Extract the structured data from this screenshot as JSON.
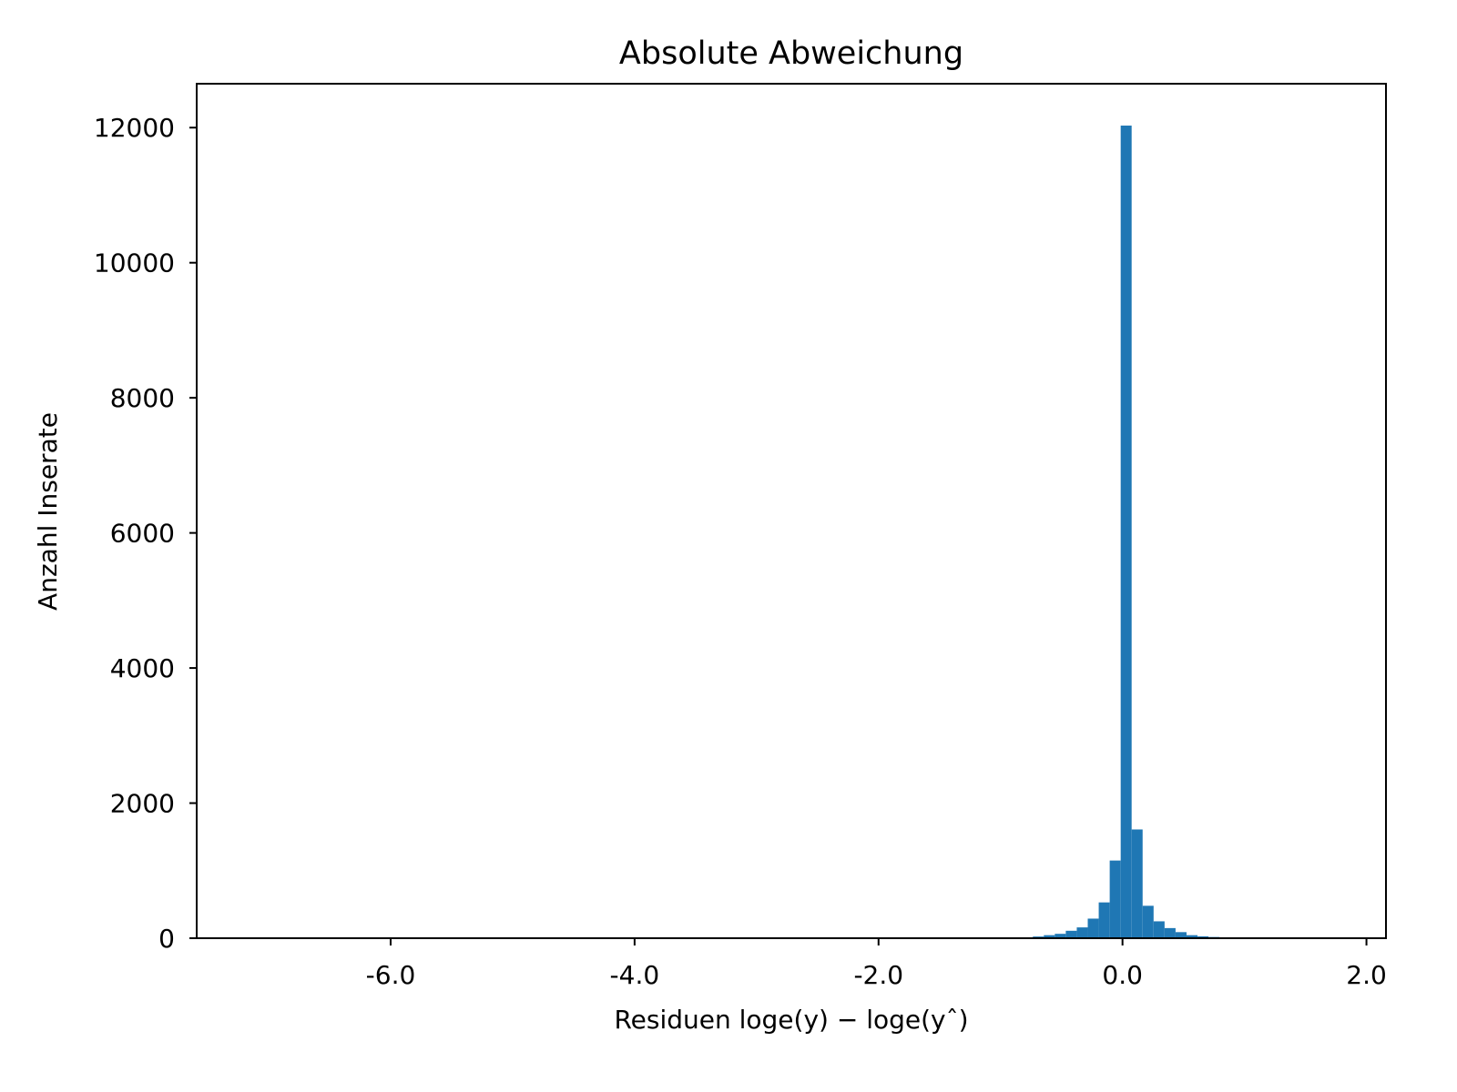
{
  "chart_data": {
    "type": "bar",
    "title": "Absolute Abweichung",
    "xlabel": "Residuen loge(y) − loge(yˆ)",
    "ylabel": "Anzahl Inserate",
    "xlim": [
      -7.59,
      2.16
    ],
    "ylim": [
      0,
      12650
    ],
    "x_ticks": [
      -6.0,
      -4.0,
      -2.0,
      0.0,
      2.0
    ],
    "x_tick_labels": [
      "-6.0",
      "-4.0",
      "-2.0",
      "0.0",
      "2.0"
    ],
    "y_ticks": [
      0,
      2000,
      4000,
      6000,
      8000,
      10000,
      12000
    ],
    "y_tick_labels": [
      "0",
      "2000",
      "4000",
      "6000",
      "8000",
      "10000",
      "12000"
    ],
    "bin_width": 0.0897,
    "bins": [
      {
        "x": -1.23,
        "count": 3
      },
      {
        "x": -1.14,
        "count": 4
      },
      {
        "x": -1.05,
        "count": 5
      },
      {
        "x": -0.96,
        "count": 6
      },
      {
        "x": -0.87,
        "count": 8
      },
      {
        "x": -0.78,
        "count": 12
      },
      {
        "x": -0.69,
        "count": 25
      },
      {
        "x": -0.6,
        "count": 45
      },
      {
        "x": -0.51,
        "count": 65
      },
      {
        "x": -0.42,
        "count": 110
      },
      {
        "x": -0.33,
        "count": 160
      },
      {
        "x": -0.24,
        "count": 290
      },
      {
        "x": -0.15,
        "count": 530
      },
      {
        "x": -0.06,
        "count": 1150
      },
      {
        "x": 0.03,
        "count": 12030
      },
      {
        "x": 0.12,
        "count": 1610
      },
      {
        "x": 0.21,
        "count": 480
      },
      {
        "x": 0.3,
        "count": 250
      },
      {
        "x": 0.39,
        "count": 150
      },
      {
        "x": 0.48,
        "count": 90
      },
      {
        "x": 0.57,
        "count": 45
      },
      {
        "x": 0.66,
        "count": 28
      },
      {
        "x": 0.75,
        "count": 18
      },
      {
        "x": 0.84,
        "count": 8
      },
      {
        "x": 0.93,
        "count": 5
      },
      {
        "x": 1.02,
        "count": 3
      }
    ],
    "bar_color": "#1f77b4",
    "grid": false,
    "legend": "none"
  }
}
